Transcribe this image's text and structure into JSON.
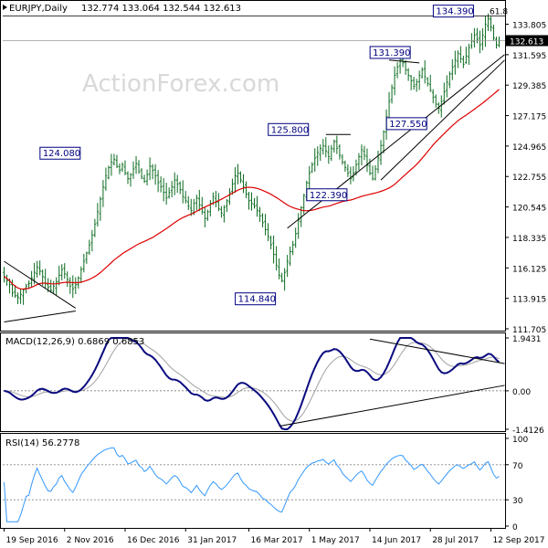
{
  "header": {
    "symbol_timeframe": "EURJPY,Daily",
    "ohlc": "132.774 133.064 132.544 132.613"
  },
  "watermark": "ActionForex.com",
  "colors": {
    "bull_candle": "#0b6b1f",
    "bear_candle": "#0b6b1f",
    "ma": "#dd0000",
    "macd": "#0a0a80",
    "signal": "#a0a0a0",
    "rsi": "#3399ff",
    "trendline": "#000000",
    "label_border": "#000080",
    "grid": "#bbbbbb"
  },
  "chart_data": [
    {
      "type": "candlestick",
      "panel": "price",
      "ylim": [
        111.705,
        134.5
      ],
      "y_ticks": [
        "133.805",
        "131.595",
        "129.385",
        "127.175",
        "124.965",
        "122.755",
        "120.545",
        "118.335",
        "116.125",
        "113.915",
        "111.705"
      ],
      "current_price_label": "132.613",
      "current_price": 132.613,
      "reference_level": 134.39,
      "reference_level_label": "61.8",
      "annotations": [
        {
          "text": "134.390",
          "value": 134.39
        },
        {
          "text": "131.390",
          "value": 131.39
        },
        {
          "text": "127.550",
          "value": 127.55
        },
        {
          "text": "125.800",
          "value": 125.8
        },
        {
          "text": "124.080",
          "value": 124.08
        },
        {
          "text": "122.390",
          "value": 122.39
        },
        {
          "text": "114.840",
          "value": 114.84
        }
      ],
      "close": [
        115.5,
        115.2,
        114.9,
        114.3,
        114.1,
        114.0,
        114.2,
        114.5,
        114.8,
        115.0,
        115.4,
        115.8,
        116.2,
        115.9,
        115.5,
        115.0,
        114.7,
        114.5,
        114.8,
        115.1,
        115.6,
        116.0,
        115.7,
        115.3,
        114.8,
        114.6,
        114.9,
        115.4,
        116.0,
        116.6,
        117.2,
        117.8,
        118.5,
        119.3,
        120.2,
        121.1,
        122.0,
        122.8,
        123.4,
        123.8,
        124.0,
        123.5,
        123.2,
        123.6,
        123.0,
        122.6,
        122.9,
        123.3,
        123.7,
        123.1,
        122.7,
        122.4,
        122.9,
        123.5,
        123.2,
        122.8,
        122.3,
        122.0,
        121.6,
        121.2,
        121.6,
        122.0,
        122.5,
        122.2,
        121.8,
        121.3,
        121.0,
        120.6,
        120.3,
        120.8,
        121.2,
        120.7,
        120.2,
        119.7,
        120.2,
        120.8,
        121.3,
        120.9,
        120.4,
        120.1,
        120.5,
        121.0,
        121.6,
        122.2,
        122.8,
        123.0,
        122.5,
        122.0,
        121.5,
        121.0,
        120.8,
        120.6,
        120.3,
        119.9,
        119.4,
        118.9,
        118.4,
        117.8,
        117.1,
        116.3,
        115.6,
        115.2,
        115.8,
        116.6,
        117.3,
        117.8,
        118.6,
        119.6,
        120.5,
        121.4,
        122.3,
        123.0,
        123.6,
        124.1,
        124.5,
        124.8,
        125.0,
        124.6,
        124.2,
        124.8,
        125.3,
        124.8,
        124.3,
        123.8,
        123.4,
        123.0,
        122.6,
        123.0,
        123.6,
        124.2,
        124.7,
        124.3,
        123.6,
        123.0,
        122.6,
        123.3,
        124.1,
        125.0,
        126.0,
        127.1,
        128.2,
        129.2,
        130.1,
        130.7,
        131.2,
        131.0,
        130.5,
        130.1,
        129.7,
        129.3,
        129.6,
        130.1,
        130.5,
        130.0,
        129.5,
        129.0,
        128.5,
        128.0,
        127.7,
        128.2,
        128.9,
        129.6,
        130.2,
        130.7,
        131.2,
        131.7,
        131.3,
        130.9,
        131.5,
        132.1,
        132.6,
        133.0,
        132.7,
        132.3,
        133.0,
        133.8,
        134.2,
        133.6,
        132.8,
        132.3,
        132.6
      ],
      "ma_period": 55
    },
    {
      "type": "line",
      "panel": "macd",
      "title": "MACD(12,26,9) 0.6869 0.6853",
      "ylim": [
        -1.4126,
        1.9431
      ],
      "y_ticks": [
        "1.9431",
        "0.00",
        "-1.4126"
      ],
      "series_names": [
        "MACD",
        "Signal"
      ]
    },
    {
      "type": "line",
      "panel": "rsi",
      "title": "RSI(14) 56.2778",
      "ylim": [
        0,
        100
      ],
      "y_ticks": [
        "100",
        "70",
        "30",
        "0"
      ]
    }
  ],
  "x_labels": [
    "19 Sep 2016",
    "2 Nov 2016",
    "16 Dec 2016",
    "31 Jan 2017",
    "16 Mar 2017",
    "1 May 2017",
    "14 Jun 2017",
    "28 Jul 2017",
    "12 Sep 2017"
  ]
}
